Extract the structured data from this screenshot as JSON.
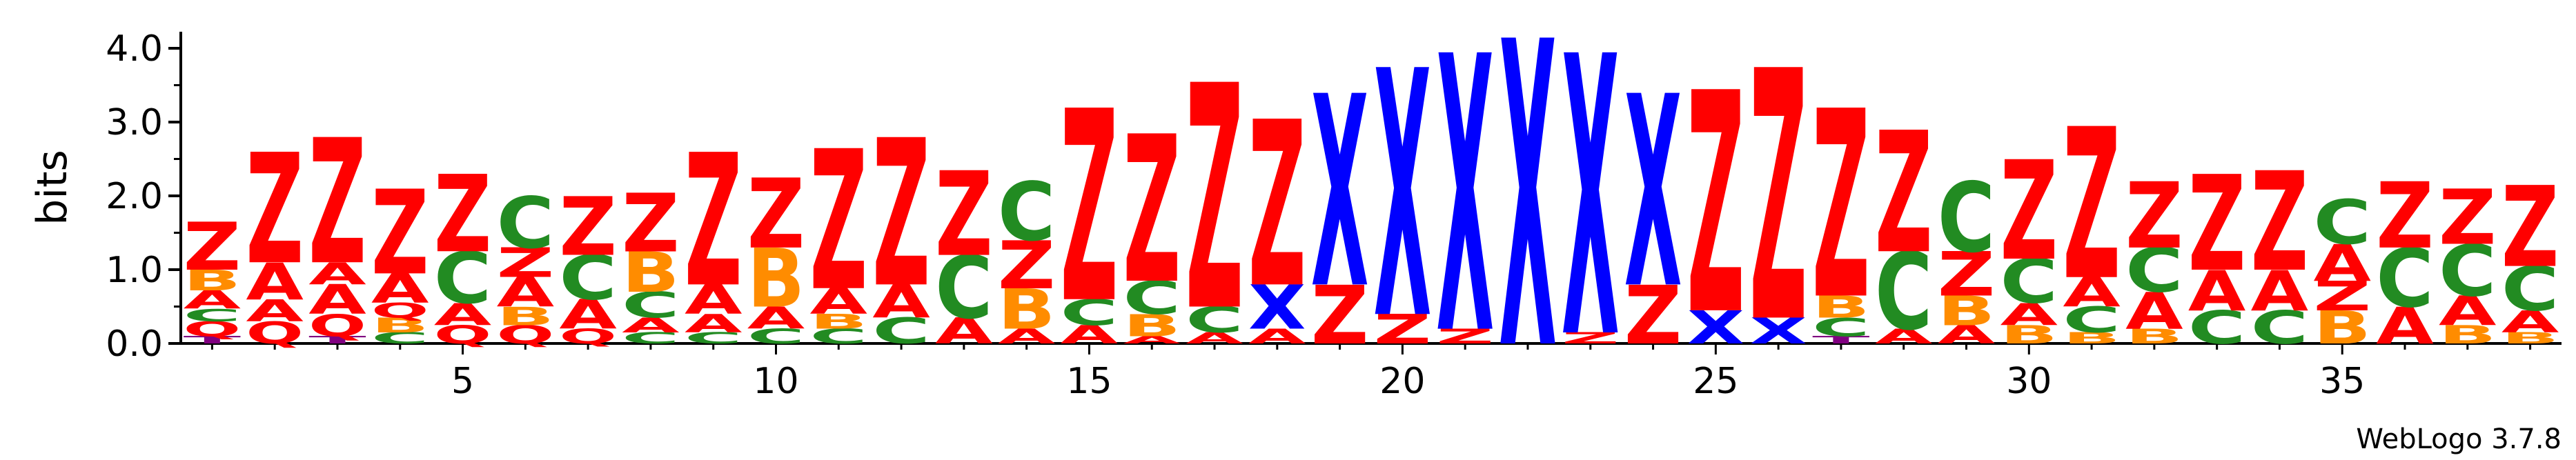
{
  "chart_data": {
    "type": "sequence_logo",
    "ylabel": "bits",
    "ylim": [
      0,
      4.0
    ],
    "yticks": [
      "0.0",
      "1.0",
      "2.0",
      "3.0",
      "4.0"
    ],
    "xticks": [
      5,
      10,
      15,
      20,
      25,
      30,
      35
    ],
    "n_positions": 38,
    "credit": "WebLogo 3.7.8",
    "colors": {
      "Z": "#ff0000",
      "X": "#0000ff",
      "A": "#ff0000",
      "C": "#228b22",
      "B": "#ff8c00",
      "Q": "#ff0000",
      "T": "#800080"
    },
    "positions": [
      {
        "pos": 1,
        "stacks": [
          {
            "letter": "T",
            "h": 0.1
          },
          {
            "letter": "Q",
            "h": 0.2
          },
          {
            "letter": "C",
            "h": 0.17
          },
          {
            "letter": "A",
            "h": 0.25
          },
          {
            "letter": "B",
            "h": 0.28
          },
          {
            "letter": "Z",
            "h": 0.65
          }
        ]
      },
      {
        "pos": 2,
        "stacks": [
          {
            "letter": "Q",
            "h": 0.3
          },
          {
            "letter": "A",
            "h": 0.3
          },
          {
            "letter": "A",
            "h": 0.5
          },
          {
            "letter": "Z",
            "h": 1.5
          }
        ]
      },
      {
        "pos": 3,
        "stacks": [
          {
            "letter": "T",
            "h": 0.1
          },
          {
            "letter": "Q",
            "h": 0.3
          },
          {
            "letter": "A",
            "h": 0.4
          },
          {
            "letter": "A",
            "h": 0.3
          },
          {
            "letter": "Z",
            "h": 1.7
          }
        ]
      },
      {
        "pos": 4,
        "stacks": [
          {
            "letter": "C",
            "h": 0.15
          },
          {
            "letter": "B",
            "h": 0.2
          },
          {
            "letter": "Q",
            "h": 0.2
          },
          {
            "letter": "A",
            "h": 0.4
          },
          {
            "letter": "Z",
            "h": 1.15
          }
        ]
      },
      {
        "pos": 5,
        "stacks": [
          {
            "letter": "Q",
            "h": 0.25
          },
          {
            "letter": "A",
            "h": 0.3
          },
          {
            "letter": "C",
            "h": 0.7
          },
          {
            "letter": "Z",
            "h": 1.05
          }
        ]
      },
      {
        "pos": 6,
        "stacks": [
          {
            "letter": "Q",
            "h": 0.25
          },
          {
            "letter": "B",
            "h": 0.25
          },
          {
            "letter": "A",
            "h": 0.4
          },
          {
            "letter": "Z",
            "h": 0.4
          },
          {
            "letter": "C",
            "h": 0.7
          }
        ]
      },
      {
        "pos": 7,
        "stacks": [
          {
            "letter": "Q",
            "h": 0.2
          },
          {
            "letter": "A",
            "h": 0.4
          },
          {
            "letter": "C",
            "h": 0.6
          },
          {
            "letter": "Z",
            "h": 0.8
          }
        ]
      },
      {
        "pos": 8,
        "stacks": [
          {
            "letter": "C",
            "h": 0.15
          },
          {
            "letter": "A",
            "h": 0.2
          },
          {
            "letter": "C",
            "h": 0.35
          },
          {
            "letter": "B",
            "h": 0.55
          },
          {
            "letter": "Z",
            "h": 0.8
          }
        ]
      },
      {
        "pos": 9,
        "stacks": [
          {
            "letter": "C",
            "h": 0.15
          },
          {
            "letter": "A",
            "h": 0.25
          },
          {
            "letter": "A",
            "h": 0.4
          },
          {
            "letter": "Z",
            "h": 1.8
          }
        ]
      },
      {
        "pos": 10,
        "stacks": [
          {
            "letter": "C",
            "h": 0.2
          },
          {
            "letter": "A",
            "h": 0.3
          },
          {
            "letter": "B",
            "h": 0.8
          },
          {
            "letter": "Z",
            "h": 0.95
          }
        ]
      },
      {
        "pos": 11,
        "stacks": [
          {
            "letter": "C",
            "h": 0.2
          },
          {
            "letter": "B",
            "h": 0.2
          },
          {
            "letter": "A",
            "h": 0.35
          },
          {
            "letter": "Z",
            "h": 1.9
          }
        ]
      },
      {
        "pos": 12,
        "stacks": [
          {
            "letter": "C",
            "h": 0.35
          },
          {
            "letter": "A",
            "h": 0.45
          },
          {
            "letter": "Z",
            "h": 2.0
          }
        ]
      },
      {
        "pos": 13,
        "stacks": [
          {
            "letter": "A",
            "h": 0.35
          },
          {
            "letter": "C",
            "h": 0.85
          },
          {
            "letter": "Z",
            "h": 1.15
          }
        ]
      },
      {
        "pos": 14,
        "stacks": [
          {
            "letter": "A",
            "h": 0.2
          },
          {
            "letter": "B",
            "h": 0.55
          },
          {
            "letter": "Z",
            "h": 0.65
          },
          {
            "letter": "C",
            "h": 0.8
          }
        ]
      },
      {
        "pos": 15,
        "stacks": [
          {
            "letter": "A",
            "h": 0.25
          },
          {
            "letter": "C",
            "h": 0.35
          },
          {
            "letter": "Z",
            "h": 2.6
          }
        ]
      },
      {
        "pos": 16,
        "stacks": [
          {
            "letter": "A",
            "h": 0.1
          },
          {
            "letter": "B",
            "h": 0.3
          },
          {
            "letter": "C",
            "h": 0.45
          },
          {
            "letter": "Z",
            "h": 2.0
          }
        ]
      },
      {
        "pos": 17,
        "stacks": [
          {
            "letter": "A",
            "h": 0.15
          },
          {
            "letter": "C",
            "h": 0.35
          },
          {
            "letter": "Z",
            "h": 3.05
          }
        ]
      },
      {
        "pos": 18,
        "stacks": [
          {
            "letter": "A",
            "h": 0.2
          },
          {
            "letter": "X",
            "h": 0.6
          },
          {
            "letter": "Z",
            "h": 2.25
          }
        ]
      },
      {
        "pos": 19,
        "stacks": [
          {
            "letter": "Z",
            "h": 0.8
          },
          {
            "letter": "X",
            "h": 2.6
          }
        ]
      },
      {
        "pos": 20,
        "stacks": [
          {
            "letter": "Z",
            "h": 0.4
          },
          {
            "letter": "X",
            "h": 3.35
          }
        ]
      },
      {
        "pos": 21,
        "stacks": [
          {
            "letter": "Z",
            "h": 0.2
          },
          {
            "letter": "X",
            "h": 3.75
          }
        ]
      },
      {
        "pos": 22,
        "stacks": [
          {
            "letter": "X",
            "h": 4.15
          }
        ]
      },
      {
        "pos": 23,
        "stacks": [
          {
            "letter": "Z",
            "h": 0.15
          },
          {
            "letter": "X",
            "h": 3.8
          }
        ]
      },
      {
        "pos": 24,
        "stacks": [
          {
            "letter": "Z",
            "h": 0.8
          },
          {
            "letter": "X",
            "h": 2.6
          }
        ]
      },
      {
        "pos": 25,
        "stacks": [
          {
            "letter": "X",
            "h": 0.45
          },
          {
            "letter": "Z",
            "h": 3.0
          }
        ]
      },
      {
        "pos": 26,
        "stacks": [
          {
            "letter": "X",
            "h": 0.35
          },
          {
            "letter": "Z",
            "h": 3.4
          }
        ]
      },
      {
        "pos": 27,
        "stacks": [
          {
            "letter": "T",
            "h": 0.1
          },
          {
            "letter": "C",
            "h": 0.25
          },
          {
            "letter": "B",
            "h": 0.3
          },
          {
            "letter": "Z",
            "h": 2.55
          }
        ]
      },
      {
        "pos": 28,
        "stacks": [
          {
            "letter": "A",
            "h": 0.2
          },
          {
            "letter": "C",
            "h": 1.05
          },
          {
            "letter": "Z",
            "h": 1.65
          }
        ]
      },
      {
        "pos": 29,
        "stacks": [
          {
            "letter": "A",
            "h": 0.25
          },
          {
            "letter": "B",
            "h": 0.4
          },
          {
            "letter": "Z",
            "h": 0.6
          },
          {
            "letter": "C",
            "h": 0.95
          }
        ]
      },
      {
        "pos": 30,
        "stacks": [
          {
            "letter": "B",
            "h": 0.25
          },
          {
            "letter": "A",
            "h": 0.3
          },
          {
            "letter": "C",
            "h": 0.6
          },
          {
            "letter": "Z",
            "h": 1.35
          }
        ]
      },
      {
        "pos": 31,
        "stacks": [
          {
            "letter": "B",
            "h": 0.15
          },
          {
            "letter": "C",
            "h": 0.35
          },
          {
            "letter": "A",
            "h": 0.4
          },
          {
            "letter": "Z",
            "h": 2.05
          }
        ]
      },
      {
        "pos": 32,
        "stacks": [
          {
            "letter": "B",
            "h": 0.2
          },
          {
            "letter": "A",
            "h": 0.5
          },
          {
            "letter": "C",
            "h": 0.6
          },
          {
            "letter": "Z",
            "h": 0.9
          }
        ]
      },
      {
        "pos": 33,
        "stacks": [
          {
            "letter": "C",
            "h": 0.45
          },
          {
            "letter": "A",
            "h": 0.55
          },
          {
            "letter": "Z",
            "h": 1.3
          }
        ]
      },
      {
        "pos": 34,
        "stacks": [
          {
            "letter": "C",
            "h": 0.45
          },
          {
            "letter": "A",
            "h": 0.55
          },
          {
            "letter": "Z",
            "h": 1.35
          }
        ]
      },
      {
        "pos": 35,
        "stacks": [
          {
            "letter": "B",
            "h": 0.45
          },
          {
            "letter": "Z",
            "h": 0.4
          },
          {
            "letter": "A",
            "h": 0.5
          },
          {
            "letter": "C",
            "h": 0.6
          }
        ]
      },
      {
        "pos": 36,
        "stacks": [
          {
            "letter": "A",
            "h": 0.5
          },
          {
            "letter": "C",
            "h": 0.8
          },
          {
            "letter": "Z",
            "h": 0.9
          }
        ]
      },
      {
        "pos": 37,
        "stacks": [
          {
            "letter": "B",
            "h": 0.25
          },
          {
            "letter": "A",
            "h": 0.4
          },
          {
            "letter": "C",
            "h": 0.7
          },
          {
            "letter": "Z",
            "h": 0.75
          }
        ]
      },
      {
        "pos": 38,
        "stacks": [
          {
            "letter": "B",
            "h": 0.15
          },
          {
            "letter": "A",
            "h": 0.3
          },
          {
            "letter": "C",
            "h": 0.6
          },
          {
            "letter": "Z",
            "h": 1.1
          }
        ]
      }
    ]
  }
}
